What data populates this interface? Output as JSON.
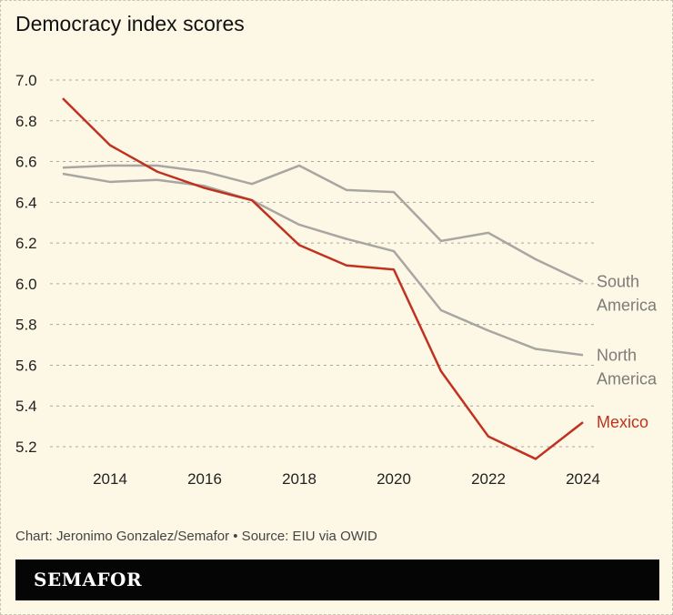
{
  "chart_data": {
    "type": "line",
    "title": "Democracy index scores",
    "xlabel": "",
    "ylabel": "",
    "x": [
      2013,
      2014,
      2015,
      2016,
      2017,
      2018,
      2019,
      2020,
      2021,
      2022,
      2023,
      2024
    ],
    "xticks": [
      "2014",
      "2016",
      "2018",
      "2020",
      "2022",
      "2024"
    ],
    "yticks": [
      "5.2",
      "5.4",
      "5.6",
      "5.8",
      "6.0",
      "6.2",
      "6.4",
      "6.6",
      "6.8",
      "7.0"
    ],
    "ylim": [
      5.2,
      7.0
    ],
    "grid": "horizontal dashed",
    "legend": "direct labels at line ends",
    "series": [
      {
        "name": "South America",
        "color": "#a8a6a2",
        "label_lines": [
          "South",
          "America"
        ],
        "values": [
          6.57,
          6.58,
          6.58,
          6.55,
          6.49,
          6.58,
          6.46,
          6.45,
          6.21,
          6.25,
          6.12,
          6.01
        ]
      },
      {
        "name": "North America",
        "color": "#a8a6a2",
        "label_lines": [
          "North",
          "America"
        ],
        "values": [
          6.54,
          6.5,
          6.51,
          6.48,
          6.41,
          6.29,
          6.22,
          6.16,
          5.87,
          5.77,
          5.68,
          5.65
        ]
      },
      {
        "name": "Mexico",
        "color": "#c0321f",
        "label_lines": [
          "Mexico"
        ],
        "values": [
          6.91,
          6.68,
          6.55,
          6.47,
          6.41,
          6.19,
          6.09,
          6.07,
          5.57,
          5.25,
          5.14,
          5.32
        ]
      }
    ]
  },
  "source": "Chart: Jeronimo Gonzalez/Semafor • Source: EIU via OWID",
  "brand": "SEMAFOR"
}
